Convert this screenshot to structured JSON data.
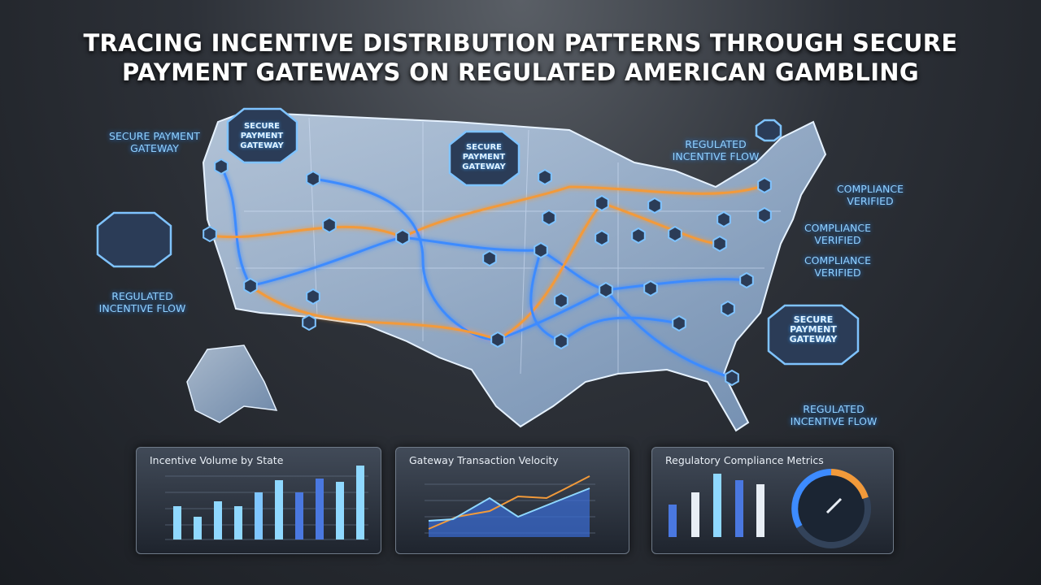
{
  "title": [
    "TRACING INCENTIVE DISTRIBUTION PATTERNS THROUGH SECURE",
    "PAYMENT GATEWAYS ON REGULATED AMERICAN GAMBLING"
  ],
  "badges": [
    "SECURE PAYMENT GATEWAY",
    "SECURE PAYMENT GATEWAY",
    "SECURE PAYMENT GATEWAY"
  ],
  "callouts": [
    "SECURE PAYMENT GATEWAY",
    "REGULATED INCENTIVE FLOW",
    "REGULATED INCENTIVE FLOW",
    "COMPLIANCE VERIFIED",
    "COMPLIANCE VERIFIED",
    "COMPLIANCE VERIFIED",
    "REGULATED INCENTIVE FLOW"
  ],
  "panels": [
    {
      "title": "Incentive Volume by State"
    },
    {
      "title": "Gateway Transaction Velocity"
    },
    {
      "title": "Regulatory Compliance Metrics"
    }
  ]
}
